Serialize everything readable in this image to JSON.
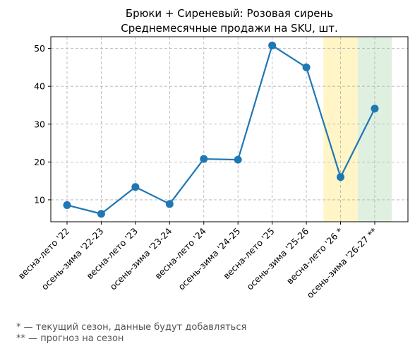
{
  "chart_data": {
    "type": "line",
    "title": [
      "Брюки + Сиреневый: Розовая сирень",
      "Среднемесячные продажи на SKU, шт."
    ],
    "xlabel": "",
    "ylabel": "",
    "categories": [
      "весна-лето '22",
      "осень-зима '22-23",
      "весна-лето '23",
      "осень-зима '23-24",
      "весна-лето '24",
      "осень-зима '24-25",
      "весна-лето '25",
      "осень-зима '25-26",
      "весна-лето '26 *",
      "осень-зима '26-27 **"
    ],
    "series": [
      {
        "values": [
          8.6,
          6.3,
          13.4,
          8.9,
          20.8,
          20.6,
          50.8,
          45.0,
          16.0,
          34.1
        ]
      }
    ],
    "ylim": [
      4.2,
      53.1
    ],
    "yticks": [
      10,
      20,
      30,
      40,
      50
    ],
    "grid": true,
    "line_color": "#1f77b4",
    "highlights": [
      {
        "category_index": 8,
        "meaning": "current season",
        "color": "#fff2b3"
      },
      {
        "category_index": 9,
        "meaning": "forecast",
        "color": "#d6ebd6"
      }
    ]
  },
  "footnotes": [
    "* — текущий сезон, данные будут добавляться",
    "** — прогноз на сезон"
  ]
}
